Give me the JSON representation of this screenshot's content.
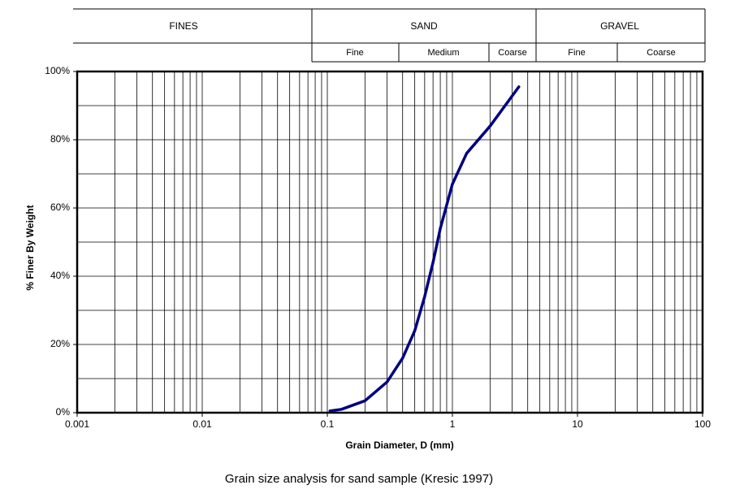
{
  "chart_data": {
    "type": "line",
    "classification": {
      "groups": [
        "FINES",
        "SAND",
        "GRAVEL"
      ],
      "subgroups": [
        "Fine",
        "Medium",
        "Coarse",
        "Fine",
        "Coarse"
      ]
    },
    "x_label": "Grain Diameter, D (mm)",
    "y_label": "% Finer By Weight",
    "caption": "Grain size analysis for sand sample (Kresic 1997)",
    "log_x": true,
    "xlim": [
      0.001,
      100
    ],
    "xticks": [
      0.001,
      0.01,
      0.1,
      1,
      10,
      100
    ],
    "xgrid": [
      0.002,
      0.003,
      0.004,
      0.005,
      0.006,
      0.007,
      0.008,
      0.009,
      0.02,
      0.03,
      0.04,
      0.05,
      0.06,
      0.07,
      0.08,
      0.09,
      0.2,
      0.3,
      0.4,
      0.5,
      0.6,
      0.7,
      0.8,
      0.9,
      2,
      3,
      4,
      5,
      6,
      7,
      8,
      9,
      20,
      30,
      40,
      50,
      60,
      70,
      80,
      90
    ],
    "ylim": [
      0,
      100
    ],
    "yticks": [
      {
        "value": 0,
        "label": "0%"
      },
      {
        "value": 20,
        "label": "20%"
      },
      {
        "value": 40,
        "label": "40%"
      },
      {
        "value": 60,
        "label": "60%"
      },
      {
        "value": 80,
        "label": "80%"
      },
      {
        "value": 100,
        "label": "100%"
      }
    ],
    "ygrid": [
      10,
      30,
      50,
      70,
      90
    ],
    "grid": true,
    "series": [
      {
        "name": null,
        "color": "#000080",
        "x": [
          0.105,
          0.13,
          0.2,
          0.3,
          0.4,
          0.5,
          0.6,
          0.7,
          0.8,
          1.0,
          1.3,
          2,
          3.4
        ],
        "values": [
          0.5,
          1,
          3.5,
          9,
          16,
          24,
          34,
          44,
          54,
          67,
          76,
          84,
          95.5
        ]
      }
    ]
  }
}
